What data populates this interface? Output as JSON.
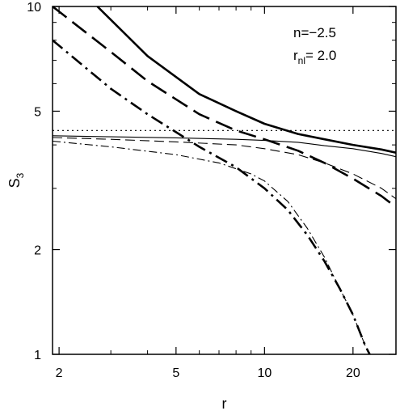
{
  "chart_data": {
    "type": "line",
    "title": "",
    "xlabel": "r",
    "ylabel": "S",
    "ylabel_subscript": "3",
    "x_scale": "log",
    "y_scale": "log",
    "xlim": [
      1.9,
      28
    ],
    "ylim": [
      1,
      10
    ],
    "xticks": [
      2,
      5,
      10,
      20
    ],
    "xtick_labels": [
      "2",
      "5",
      "10",
      "20"
    ],
    "yticks": [
      1,
      2,
      5,
      10
    ],
    "ytick_labels": [
      "1",
      "2",
      "5",
      "10"
    ],
    "grid": false,
    "legend": "none",
    "annotations": {
      "line1_prefix": "n=",
      "line1_value": "−2.5",
      "line2_symbol": "r",
      "line2_subscript": "nl",
      "line2_value": "=  2.0"
    },
    "series": [
      {
        "style": "dotted",
        "weight": "thin",
        "x": [
          1.9,
          28
        ],
        "y": [
          4.4,
          4.4
        ]
      },
      {
        "style": "solid",
        "weight": "thick",
        "x": [
          2.7,
          4,
          6,
          8,
          10,
          13,
          16,
          20,
          25,
          28
        ],
        "y": [
          10,
          7.2,
          5.6,
          5.0,
          4.6,
          4.3,
          4.15,
          4.0,
          3.88,
          3.8
        ]
      },
      {
        "style": "dashed",
        "weight": "thick",
        "x": [
          1.9,
          3,
          4,
          6,
          8,
          10,
          13,
          16,
          20,
          25,
          28
        ],
        "y": [
          10,
          7.4,
          6.1,
          4.9,
          4.4,
          4.15,
          3.85,
          3.55,
          3.2,
          2.85,
          2.65
        ]
      },
      {
        "style": "dashdot",
        "weight": "thick",
        "x": [
          1.9,
          3,
          4,
          5,
          6,
          8,
          10,
          12,
          14,
          16,
          18,
          20,
          21,
          22,
          22.8
        ],
        "y": [
          8,
          5.8,
          4.9,
          4.35,
          3.95,
          3.45,
          3.0,
          2.6,
          2.2,
          1.85,
          1.55,
          1.3,
          1.17,
          1.06,
          1.0
        ]
      },
      {
        "style": "solid",
        "weight": "thin",
        "x": [
          1.9,
          3,
          5,
          8,
          10,
          13,
          16,
          20,
          25,
          28
        ],
        "y": [
          4.25,
          4.22,
          4.19,
          4.15,
          4.12,
          4.07,
          3.98,
          3.9,
          3.78,
          3.7
        ]
      },
      {
        "style": "dashed",
        "weight": "thin",
        "x": [
          1.9,
          3,
          5,
          8,
          10,
          13,
          16,
          20,
          25,
          28
        ],
        "y": [
          4.2,
          4.15,
          4.08,
          4.0,
          3.9,
          3.75,
          3.55,
          3.3,
          3.0,
          2.8
        ]
      },
      {
        "style": "dashdot",
        "weight": "thin",
        "x": [
          1.9,
          3,
          5,
          7,
          9,
          10,
          12,
          14,
          16,
          18,
          20,
          21,
          22,
          22.8
        ],
        "y": [
          4.1,
          3.95,
          3.75,
          3.55,
          3.3,
          3.15,
          2.75,
          2.3,
          1.9,
          1.55,
          1.3,
          1.17,
          1.06,
          1.0
        ]
      }
    ]
  }
}
